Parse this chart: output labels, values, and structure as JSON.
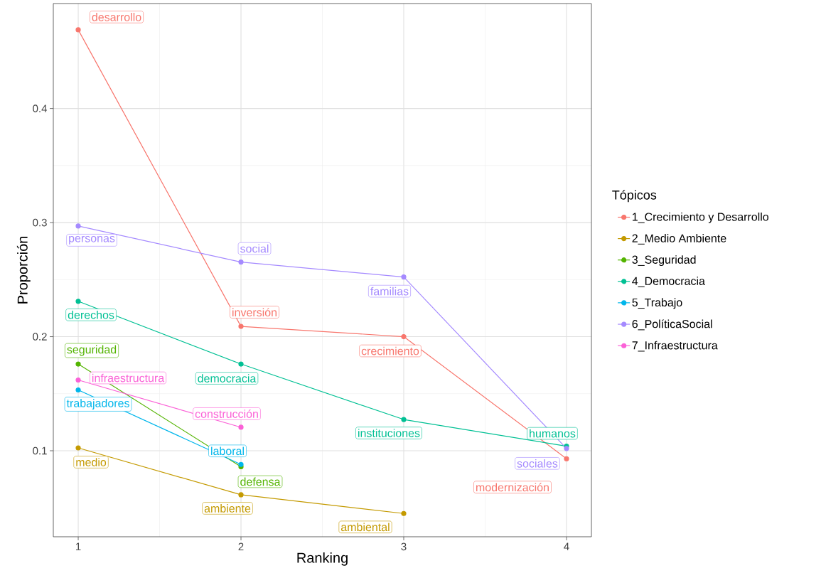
{
  "chart_data": {
    "type": "line",
    "xlabel": "Ranking",
    "ylabel": "Proporción",
    "legend_title": "Tópicos",
    "xlim": [
      0.847,
      4.153
    ],
    "ylim": [
      0.0246,
      0.492
    ],
    "xticks": [
      1,
      2,
      3,
      4
    ],
    "yticks": [
      0.1,
      0.2,
      0.3,
      0.4
    ],
    "grid": true,
    "legend": "right",
    "marker": "circle",
    "line_style": "solid",
    "series": [
      {
        "name": "1_Crecimiento y Desarrollo",
        "color": "#f8766d",
        "x": [
          1,
          2,
          3,
          4
        ],
        "values": [
          0.469,
          0.209,
          0.2,
          0.093
        ],
        "value_labels": [
          "desarrollo",
          "inversión",
          "crecimiento",
          "modernización"
        ]
      },
      {
        "name": "2_Medio Ambiente",
        "color": "#c49a00",
        "x": [
          1,
          2,
          3
        ],
        "values": [
          0.1025,
          0.0614,
          0.045
        ],
        "value_labels": [
          "medio",
          "ambiente",
          "ambiental"
        ]
      },
      {
        "name": "3_Seguridad",
        "color": "#53b400",
        "x": [
          1,
          2
        ],
        "values": [
          0.176,
          0.086
        ],
        "value_labels": [
          "seguridad",
          "defensa"
        ]
      },
      {
        "name": "4_Democracia",
        "color": "#00c094",
        "x": [
          1,
          2,
          3,
          4
        ],
        "values": [
          0.231,
          0.176,
          0.1274,
          0.104
        ],
        "value_labels": [
          "derechos",
          "democracia",
          "instituciones",
          "humanos"
        ]
      },
      {
        "name": "5_Trabajo",
        "color": "#00b6eb",
        "x": [
          1,
          2
        ],
        "values": [
          0.1533,
          0.088
        ],
        "value_labels": [
          "trabajadores",
          "laboral"
        ]
      },
      {
        "name": "6_PolíticaSocial",
        "color": "#a58aff",
        "x": [
          1,
          2,
          3,
          4
        ],
        "values": [
          0.297,
          0.2654,
          0.2523,
          0.102
        ],
        "value_labels": [
          "personas",
          "social",
          "familias",
          "sociales"
        ]
      },
      {
        "name": "7_Infraestructura",
        "color": "#fb61d7",
        "x": [
          1,
          2
        ],
        "values": [
          0.162,
          0.1206
        ],
        "value_labels": [
          "infraestructura",
          "construcción"
        ]
      }
    ]
  }
}
